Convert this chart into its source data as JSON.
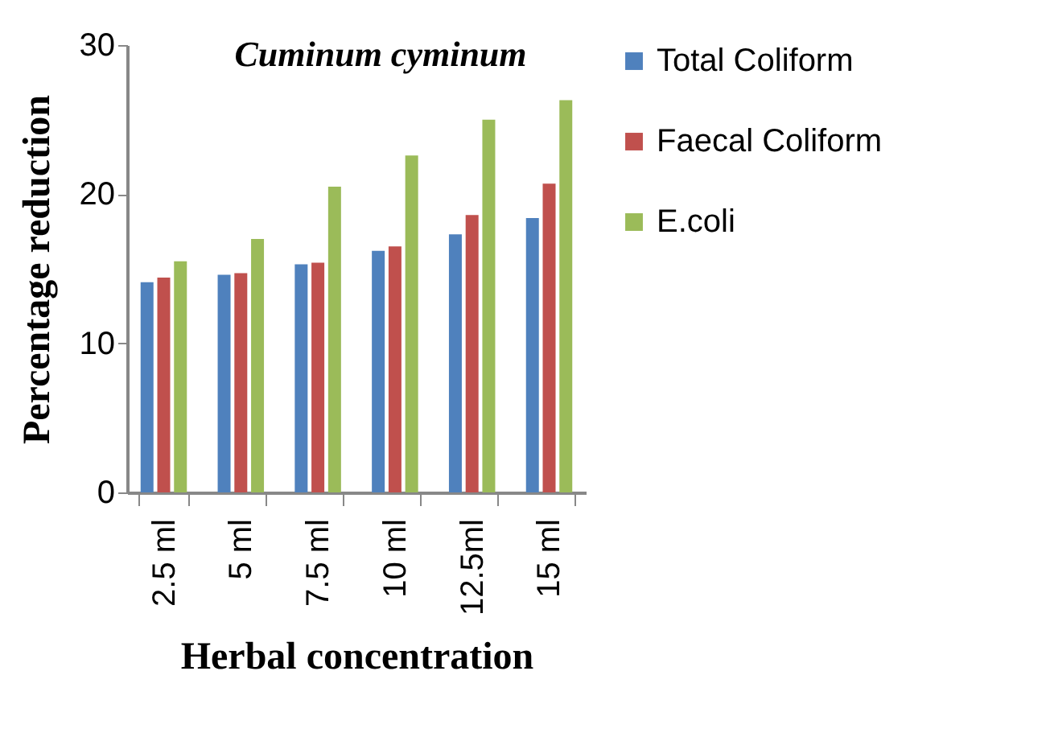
{
  "chart_data": {
    "type": "bar",
    "title": "Cuminum cyminum",
    "xlabel": "Herbal concentration",
    "ylabel": "Percentage reduction",
    "categories": [
      "2.5 ml",
      "5 ml",
      "7.5 ml",
      "10 ml",
      "12.5ml",
      "15 ml"
    ],
    "series": [
      {
        "name": "Total Coliform",
        "color": "#4f81bd",
        "values": [
          14.1,
          14.6,
          15.3,
          16.2,
          17.3,
          18.4
        ]
      },
      {
        "name": "Faecal Coliform",
        "color": "#c0504d",
        "values": [
          14.4,
          14.7,
          15.4,
          16.5,
          18.6,
          20.7
        ]
      },
      {
        "name": "E.coli",
        "color": "#9bbb59",
        "values": [
          15.5,
          17.0,
          20.5,
          22.6,
          25.0,
          26.3
        ]
      }
    ],
    "ylim": [
      0,
      30
    ],
    "yticks": [
      0,
      10,
      20,
      30
    ],
    "grid": false,
    "legend": "right"
  }
}
